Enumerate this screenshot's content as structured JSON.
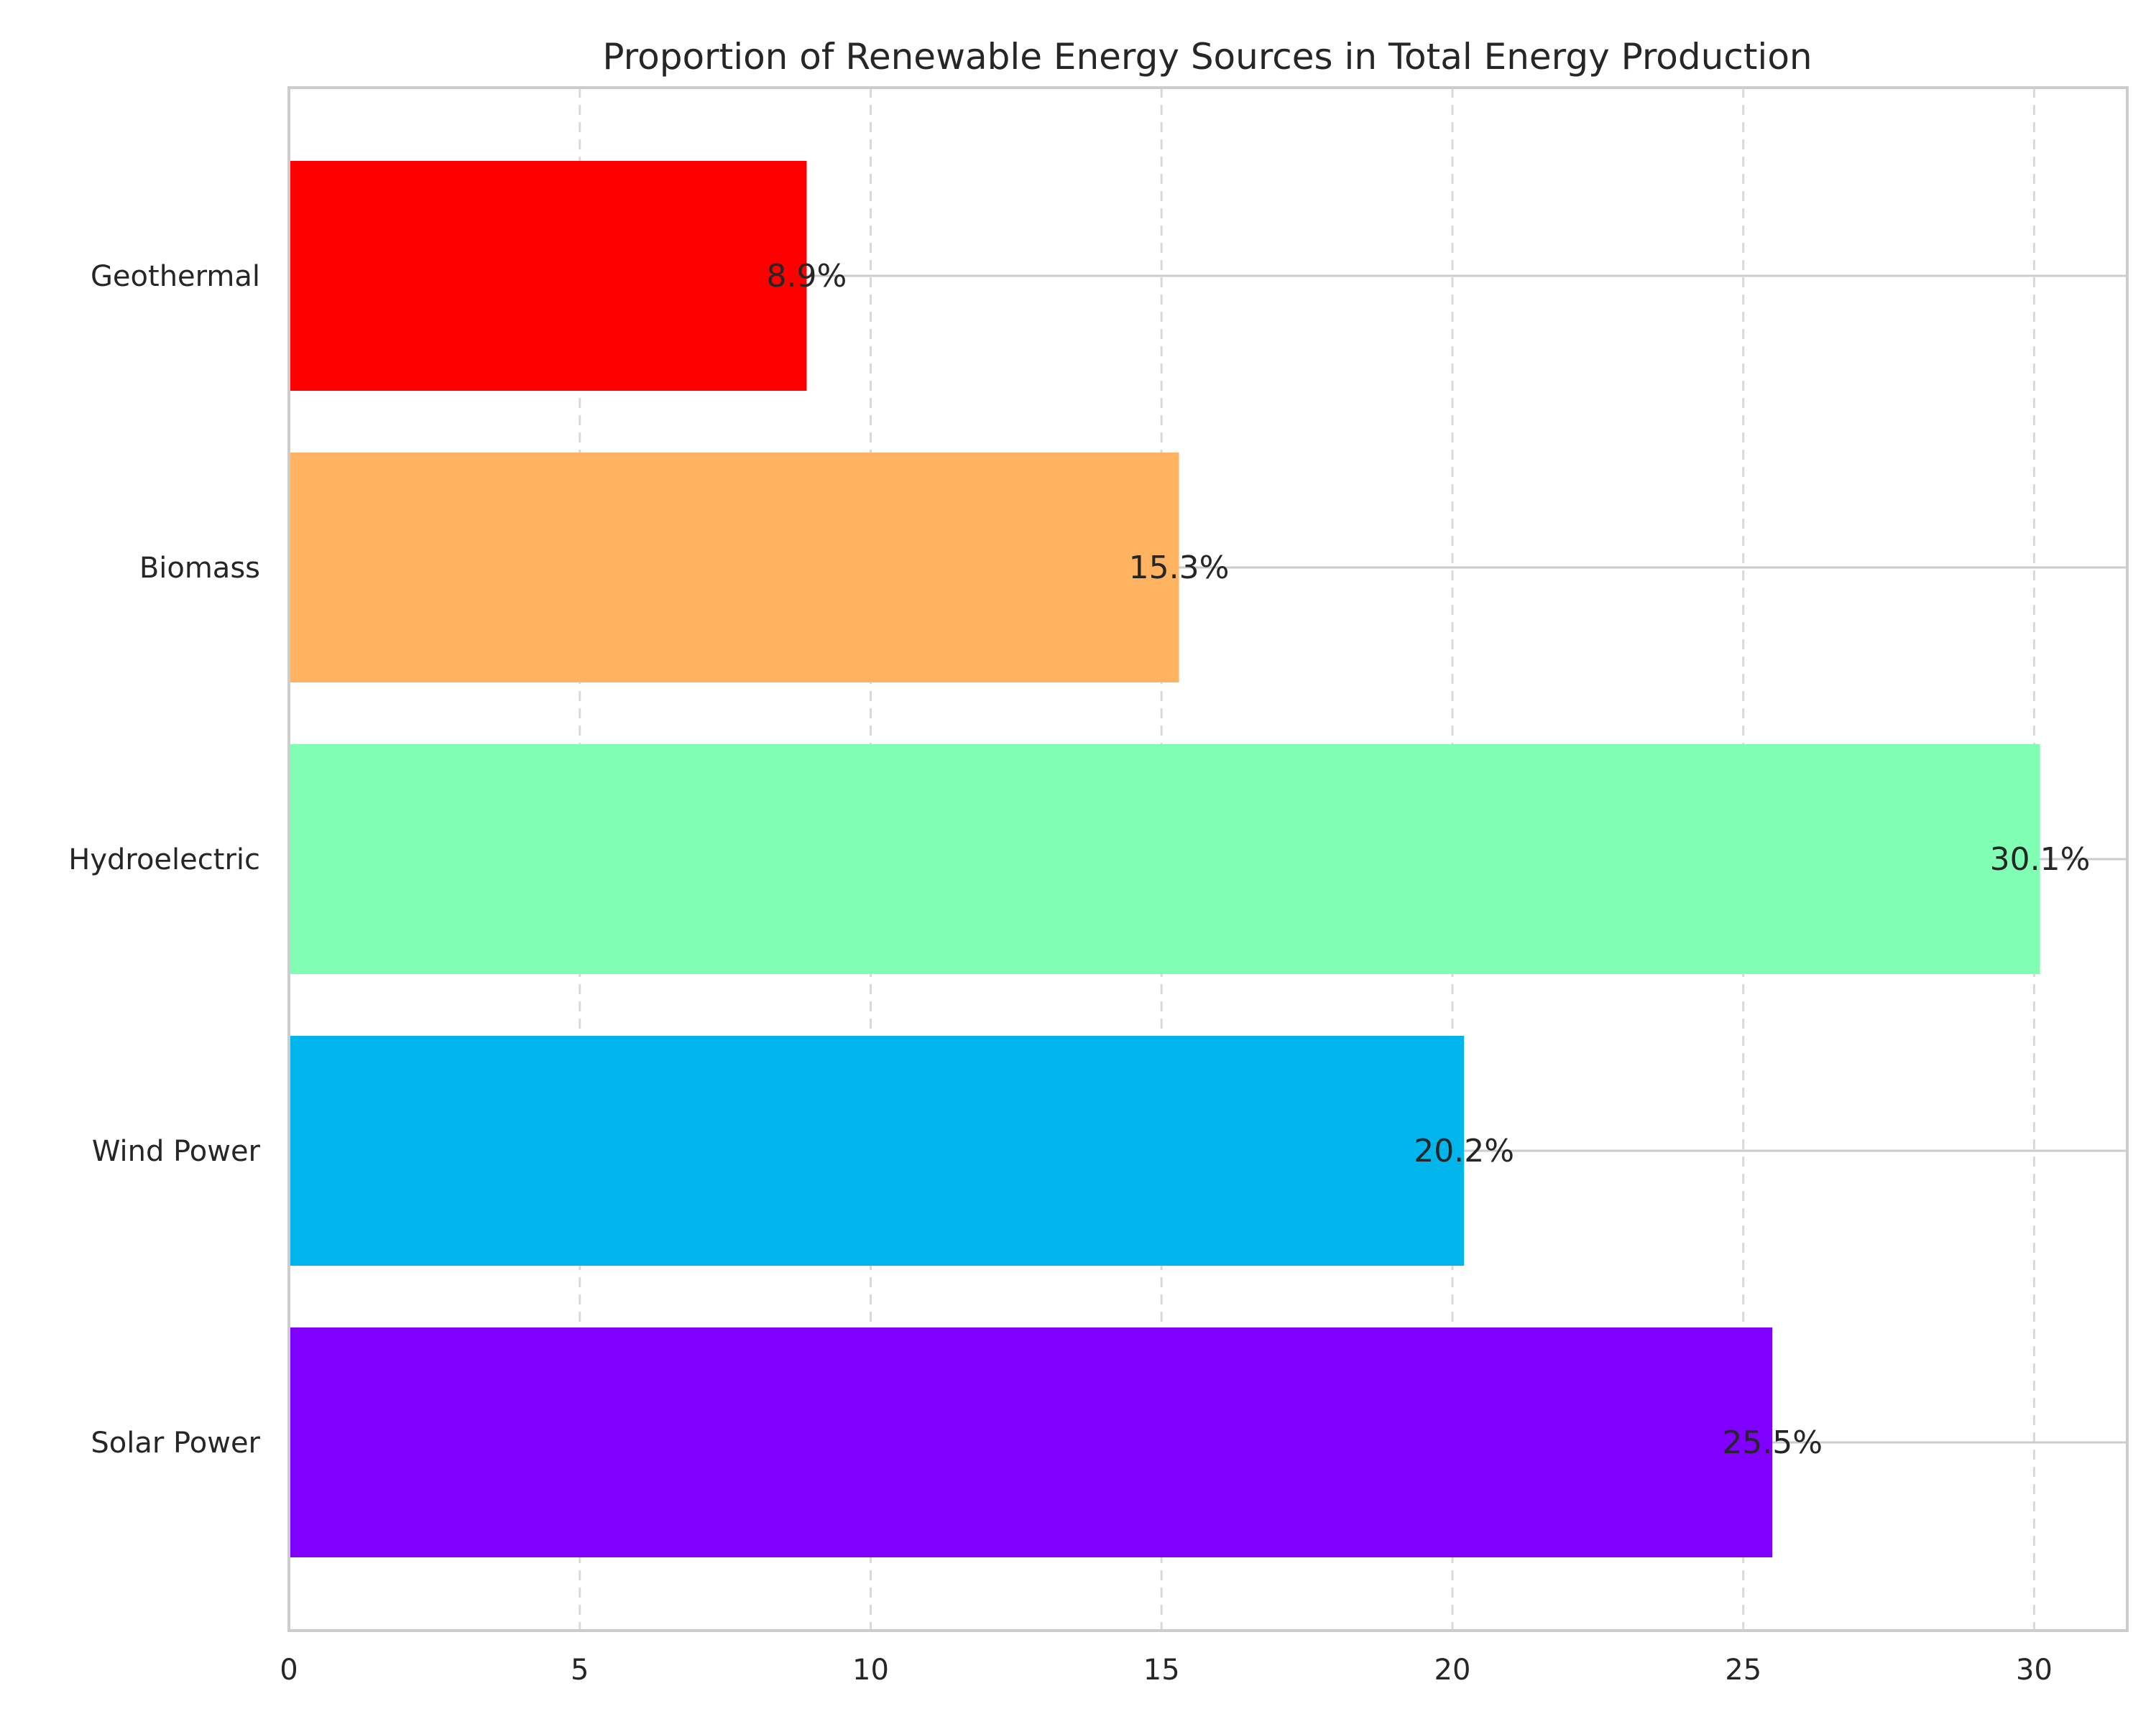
{
  "chart_data": {
    "type": "bar",
    "orientation": "horizontal",
    "title": "Proportion of Renewable Energy Sources in Total Energy Production",
    "xlabel": "",
    "ylabel": "",
    "categories": [
      "Solar Power",
      "Wind Power",
      "Hydroelectric",
      "Biomass",
      "Geothermal"
    ],
    "values": [
      25.5,
      20.2,
      30.1,
      15.3,
      8.9
    ],
    "value_labels": [
      "25.5%",
      "20.2%",
      "30.1%",
      "15.3%",
      "8.9%"
    ],
    "colors": [
      "#8000ff",
      "#00b5eb",
      "#80ffb4",
      "#ffb360",
      "#ff0000"
    ],
    "xlim": [
      0,
      31.6
    ],
    "xticks": [
      0,
      5,
      10,
      15,
      20,
      25,
      30
    ],
    "xtick_labels": [
      "0",
      "5",
      "10",
      "15",
      "20",
      "25",
      "30"
    ],
    "grid": {
      "x": "dashed",
      "y": "solid"
    },
    "legend": "none"
  }
}
